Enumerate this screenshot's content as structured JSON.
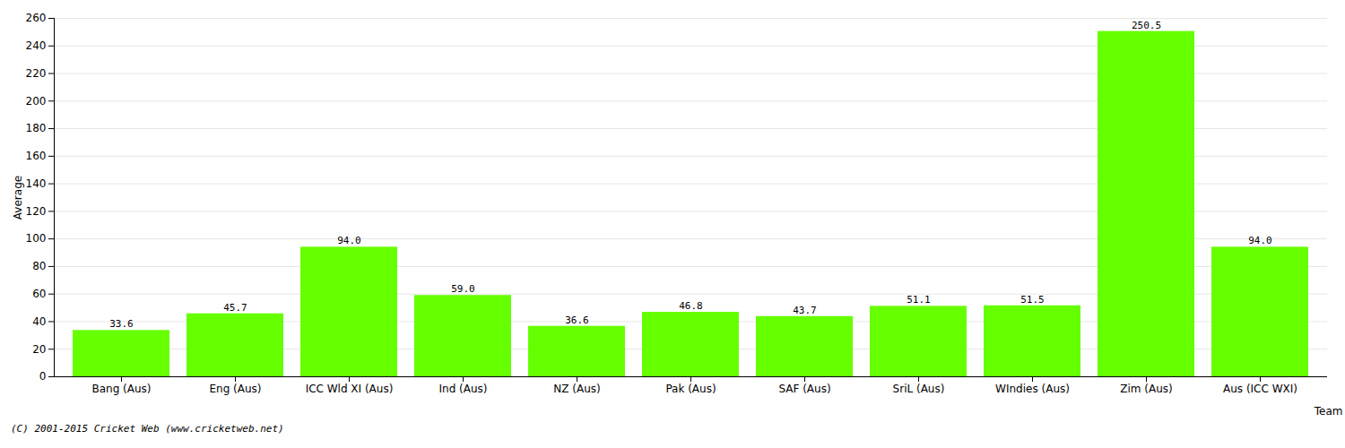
{
  "chart_data": {
    "type": "bar",
    "categories": [
      "Bang (Aus)",
      "Eng (Aus)",
      "ICC Wld XI (Aus)",
      "Ind (Aus)",
      "NZ (Aus)",
      "Pak (Aus)",
      "SAF (Aus)",
      "SriL (Aus)",
      "WIndies (Aus)",
      "Zim (Aus)",
      "Aus (ICC WXI)"
    ],
    "values": [
      33.6,
      45.7,
      94.0,
      59.0,
      36.6,
      46.8,
      43.7,
      51.1,
      51.5,
      250.5,
      94.0
    ],
    "value_labels": [
      "33.6",
      "45.7",
      "94.0",
      "59.0",
      "36.6",
      "46.8",
      "43.7",
      "51.1",
      "51.5",
      "250.5",
      "94.0"
    ],
    "data_labels": true,
    "color": "#66ff00",
    "xlabel": "Team",
    "ylabel": "Average",
    "ylim": [
      0,
      260
    ],
    "yticks": [
      0,
      20,
      40,
      60,
      80,
      100,
      120,
      140,
      160,
      180,
      200,
      220,
      240,
      260
    ],
    "grid": true,
    "annotations": [
      "(C) 2001-2015 Cricket Web (www.cricketweb.net)"
    ]
  }
}
